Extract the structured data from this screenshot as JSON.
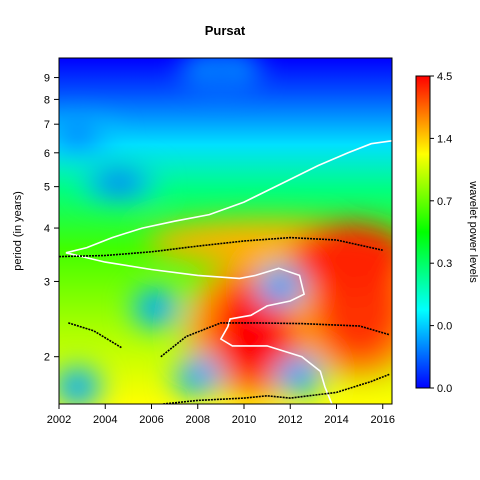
{
  "chart_data": {
    "type": "heatmap",
    "title": "Pursat",
    "xlabel": "",
    "ylabel": "period (in years)",
    "colorbar_label": "wavelet power levels",
    "x_ticks": [
      "2002",
      "2004",
      "2006",
      "2008",
      "2010",
      "2012",
      "2014",
      "2016"
    ],
    "x_tick_values": [
      2002,
      2004,
      2006,
      2008,
      2010,
      2012,
      2014,
      2016
    ],
    "xlim": [
      2002,
      2016.4
    ],
    "y_scale": "log2",
    "y_ticks": [
      "2",
      "3",
      "4",
      "5",
      "6",
      "7",
      "8",
      "9"
    ],
    "y_tick_values": [
      2,
      3,
      4,
      5,
      6,
      7,
      8,
      9
    ],
    "ylim": [
      1.55,
      10.0
    ],
    "colorbar_ticks": [
      "0.0",
      "0.0",
      "0.3",
      "0.7",
      "1.4",
      "4.5"
    ],
    "colorbar_range": [
      0.0,
      4.5
    ],
    "colorscale": [
      "#0000ff",
      "#00ffff",
      "#00ff00",
      "#ffff00",
      "#ff0000"
    ],
    "power_features": [
      {
        "time": 2010.5,
        "period": 2.3,
        "level": "high"
      },
      {
        "time": 2015.0,
        "period": 2.6,
        "level": "high"
      },
      {
        "time": 2011.6,
        "period": 2.93,
        "level": "low"
      },
      {
        "time": 2006.2,
        "period": 2.6,
        "level": "low"
      },
      {
        "time": 2008.0,
        "period": 1.8,
        "level": "low"
      },
      {
        "time": 2012.4,
        "period": 1.8,
        "level": "low"
      },
      {
        "time": 2002.8,
        "period": 1.7,
        "level": "low"
      },
      {
        "time": 2004.6,
        "period": 5.1,
        "level": "low"
      },
      {
        "time": 2002.8,
        "period": 6.6,
        "level": "low"
      },
      {
        "time": 2009.0,
        "period": 9.4,
        "level": "low"
      }
    ],
    "ridge_lines": [
      {
        "points": [
          [
            2002,
            3.43
          ],
          [
            2004,
            3.45
          ],
          [
            2006,
            3.52
          ],
          [
            2008,
            3.63
          ],
          [
            2010,
            3.73
          ],
          [
            2012,
            3.8
          ],
          [
            2014,
            3.75
          ],
          [
            2016,
            3.55
          ]
        ]
      },
      {
        "points": [
          [
            2002.4,
            2.4
          ],
          [
            2003.5,
            2.3
          ],
          [
            2004.7,
            2.1
          ]
        ]
      },
      {
        "points": [
          [
            2006.4,
            2.0
          ],
          [
            2007.5,
            2.23
          ],
          [
            2009,
            2.4
          ],
          [
            2010.5,
            2.4
          ],
          [
            2012.5,
            2.39
          ],
          [
            2015,
            2.36
          ],
          [
            2016.3,
            2.25
          ]
        ]
      },
      {
        "points": [
          [
            2006.5,
            1.55
          ],
          [
            2008,
            1.58
          ],
          [
            2010,
            1.6
          ],
          [
            2011,
            1.62
          ],
          [
            2012,
            1.6
          ],
          [
            2014,
            1.65
          ],
          [
            2015.5,
            1.75
          ],
          [
            2016.3,
            1.82
          ]
        ]
      }
    ],
    "significance_contours": [
      {
        "points": [
          [
            2002.3,
            3.5
          ],
          [
            2003.2,
            3.6
          ],
          [
            2004.3,
            3.8
          ],
          [
            2005.6,
            4.0
          ],
          [
            2007,
            4.15
          ],
          [
            2008.5,
            4.3
          ],
          [
            2010,
            4.6
          ],
          [
            2012,
            5.2
          ],
          [
            2013.2,
            5.6
          ],
          [
            2014.5,
            6.0
          ],
          [
            2015.5,
            6.3
          ],
          [
            2016.4,
            6.4
          ]
        ]
      },
      {
        "points": [
          [
            2002.3,
            3.5
          ],
          [
            2004,
            3.33
          ],
          [
            2006,
            3.2
          ],
          [
            2008,
            3.1
          ],
          [
            2009.8,
            3.05
          ],
          [
            2010.5,
            3.1
          ],
          [
            2011.5,
            3.22
          ],
          [
            2012.4,
            3.1
          ],
          [
            2012.6,
            2.8
          ],
          [
            2012,
            2.7
          ],
          [
            2011,
            2.63
          ],
          [
            2010.3,
            2.5
          ],
          [
            2009.4,
            2.45
          ],
          [
            2009.3,
            2.35
          ],
          [
            2009,
            2.2
          ],
          [
            2009.5,
            2.12
          ],
          [
            2011,
            2.12
          ],
          [
            2012.5,
            2.0
          ],
          [
            2013.3,
            1.85
          ],
          [
            2013.5,
            1.7
          ],
          [
            2013.8,
            1.55
          ]
        ]
      }
    ]
  }
}
